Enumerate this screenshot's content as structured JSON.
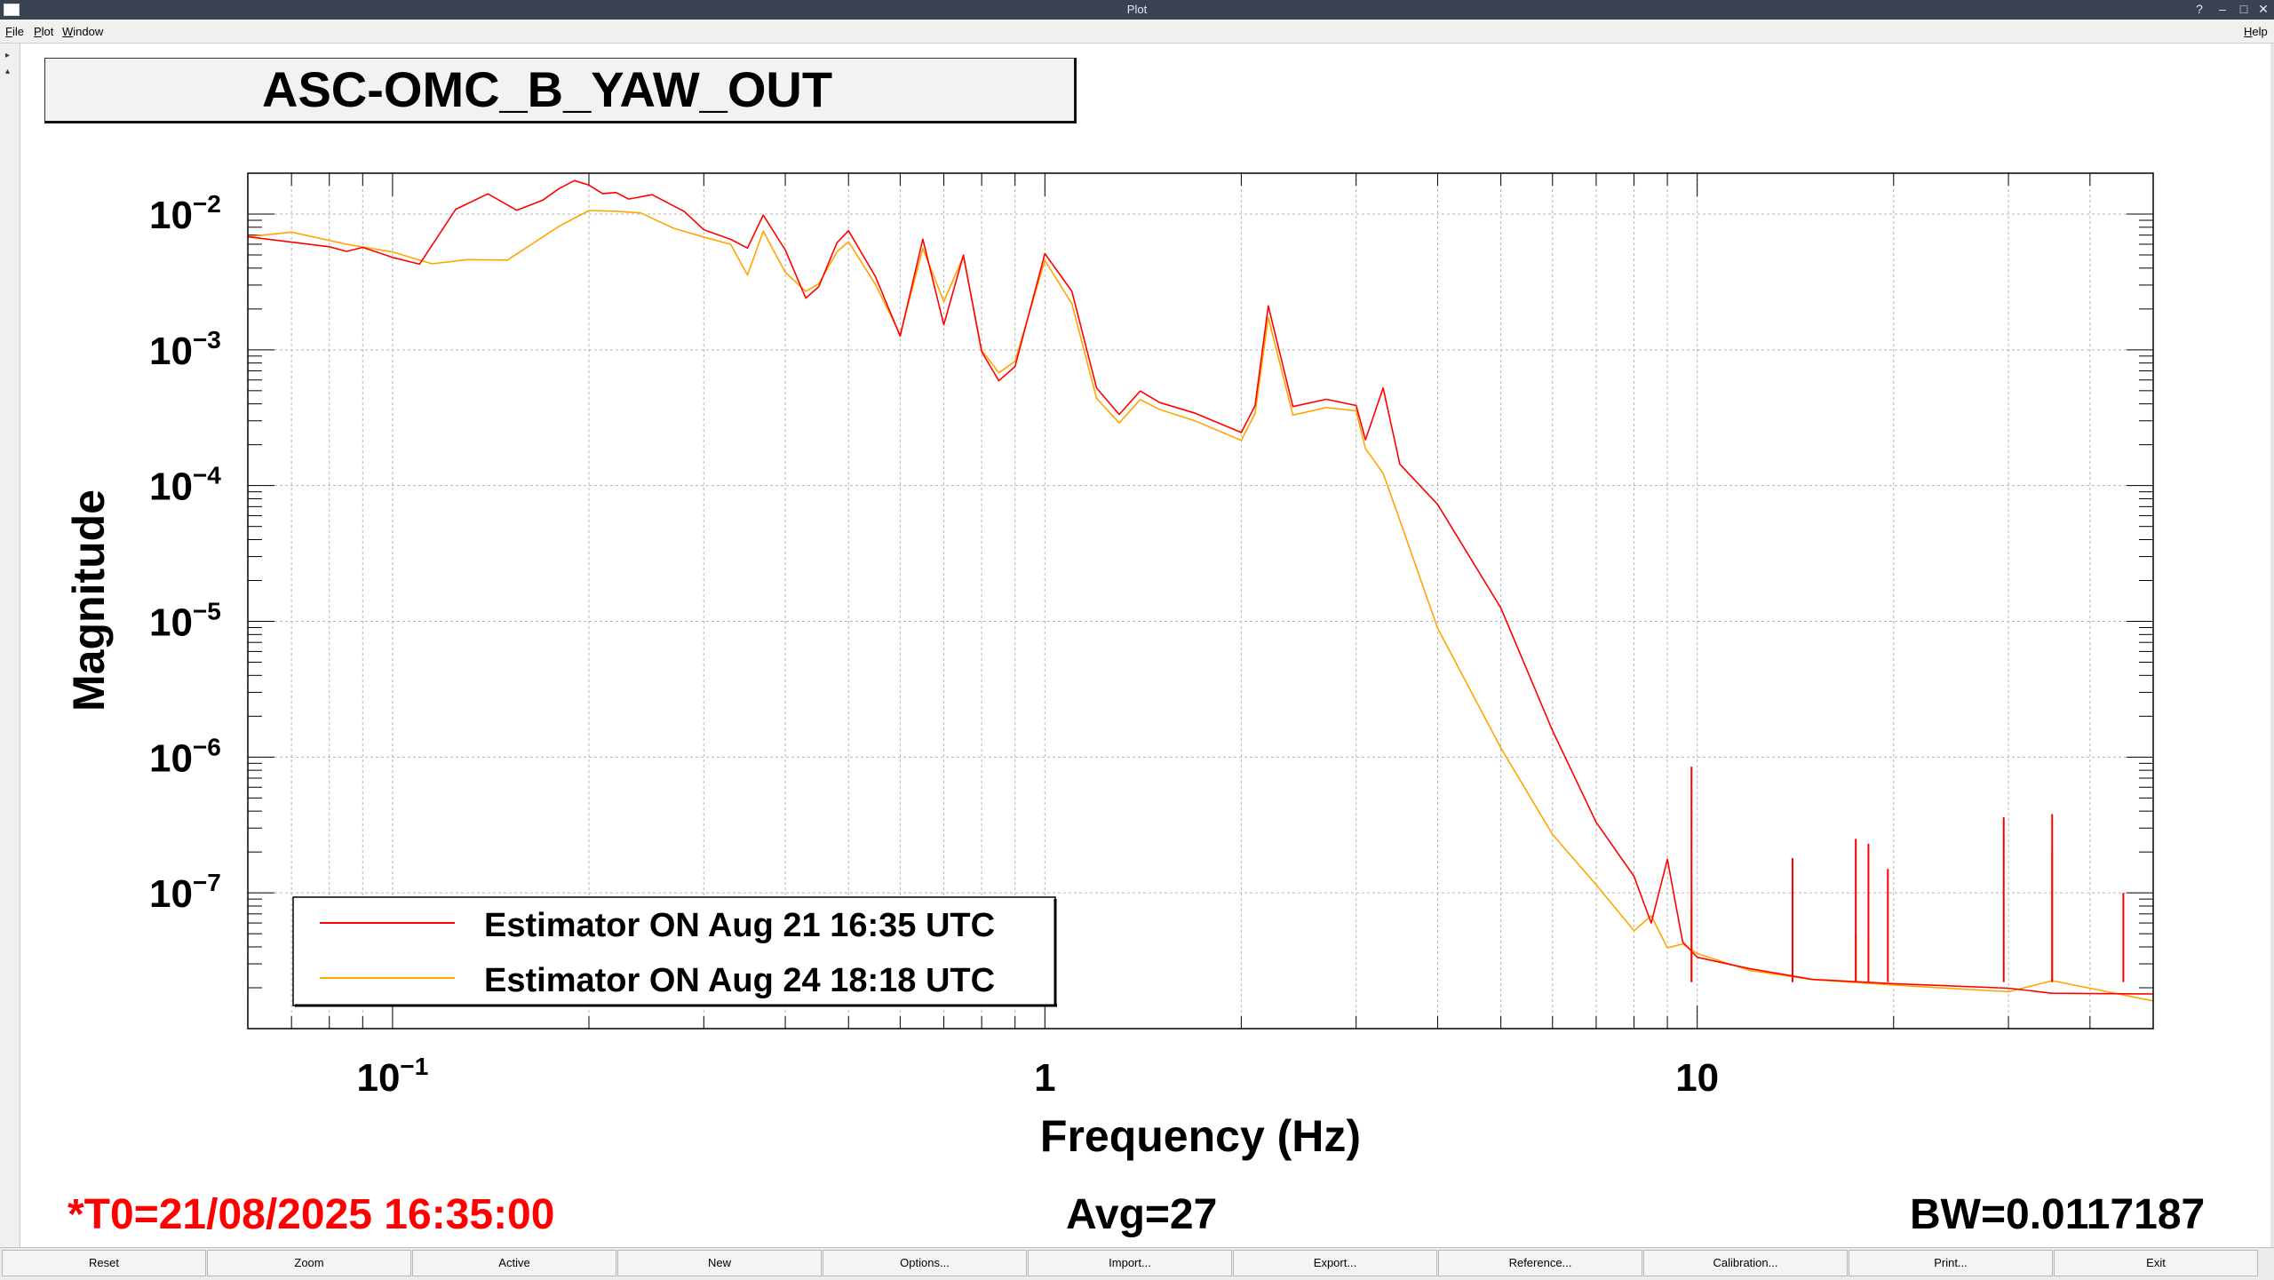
{
  "window": {
    "title": "Plot",
    "controls": [
      "?",
      "–",
      "□",
      "✕"
    ]
  },
  "menu": {
    "items": [
      "File",
      "Plot",
      "Window"
    ],
    "help": "Help"
  },
  "plot_title": "ASC-OMC_B_YAW_OUT",
  "footer": {
    "t0": "*T0=21/08/2025 16:35:00",
    "avg": "Avg=27",
    "bw": "BW=0.0117187"
  },
  "buttons": [
    "Reset",
    "Zoom",
    "Active",
    "New",
    "Options...",
    "Import...",
    "Export...",
    "Reference...",
    "Calibration...",
    "Print...",
    "Exit"
  ],
  "colors": {
    "series_aug21": "#ff0000",
    "series_aug24": "#ffa500",
    "t0_text": "#ff0000"
  },
  "chart_data": {
    "type": "line",
    "xlabel": "Frequency (Hz)",
    "ylabel": "Magnitude",
    "x_scale": "log",
    "y_scale": "log",
    "xlim": [
      0.06,
      50
    ],
    "ylim": [
      1e-08,
      0.02
    ],
    "x_ticks": [
      {
        "value": 0.1,
        "base": "10",
        "exp": "−1"
      },
      {
        "value": 1,
        "base": "1",
        "exp": ""
      },
      {
        "value": 10,
        "base": "10",
        "exp": ""
      }
    ],
    "y_ticks": [
      {
        "value": 0.01,
        "base": "10",
        "exp": "−2"
      },
      {
        "value": 0.001,
        "base": "10",
        "exp": "−3"
      },
      {
        "value": 0.0001,
        "base": "10",
        "exp": "−4"
      },
      {
        "value": 1e-05,
        "base": "10",
        "exp": "−5"
      },
      {
        "value": 1e-06,
        "base": "10",
        "exp": "−6"
      },
      {
        "value": 1e-07,
        "base": "10",
        "exp": "−7"
      }
    ],
    "grid": true,
    "legend": "bottom-left",
    "series": [
      {
        "name": "Estimator ON Aug 24 18:18 UTC",
        "color": "#ffa500",
        "x": [
          0.06,
          0.07,
          0.085,
          0.1,
          0.115,
          0.13,
          0.15,
          0.18,
          0.2,
          0.22,
          0.24,
          0.27,
          0.3,
          0.33,
          0.35,
          0.37,
          0.4,
          0.43,
          0.45,
          0.48,
          0.5,
          0.55,
          0.6,
          0.65,
          0.7,
          0.75,
          0.8,
          0.85,
          0.9,
          1.0,
          1.1,
          1.2,
          1.3,
          1.4,
          1.5,
          1.7,
          2.0,
          2.1,
          2.2,
          2.4,
          2.7,
          3.0,
          3.1,
          3.3,
          3.5,
          4.0,
          5.0,
          6.0,
          7.0,
          8.0,
          8.5,
          9.0,
          9.5,
          10,
          12,
          15,
          20,
          30,
          35,
          50
        ],
        "y": [
          0.0068,
          0.0075,
          0.0062,
          0.0055,
          0.0045,
          0.0048,
          0.0047,
          0.0082,
          0.0105,
          0.0102,
          0.0098,
          0.0075,
          0.0065,
          0.0058,
          0.0035,
          0.0075,
          0.0038,
          0.0028,
          0.0032,
          0.0055,
          0.0065,
          0.0031,
          0.0013,
          0.0055,
          0.0022,
          0.0047,
          0.00095,
          0.00065,
          0.0008,
          0.0045,
          0.0022,
          0.00045,
          0.0003,
          0.00045,
          0.00038,
          0.00031,
          0.00022,
          0.00034,
          0.0017,
          0.00032,
          0.00036,
          0.00034,
          0.00018,
          0.00012,
          5.5e-05,
          9e-06,
          1.2e-06,
          2.8e-07,
          1.2e-07,
          5.5e-08,
          7e-08,
          4e-08,
          4.2e-08,
          3.5e-08,
          2.6e-08,
          2.2e-08,
          2e-08,
          1.8e-08,
          2.2e-08,
          1.6e-08
        ]
      },
      {
        "name": "Estimator ON Aug 21 16:35 UTC",
        "color": "#ff0000",
        "x": [
          0.06,
          0.07,
          0.08,
          0.085,
          0.09,
          0.1,
          0.11,
          0.125,
          0.14,
          0.155,
          0.17,
          0.18,
          0.19,
          0.2,
          0.21,
          0.22,
          0.23,
          0.25,
          0.28,
          0.3,
          0.33,
          0.35,
          0.37,
          0.4,
          0.43,
          0.45,
          0.48,
          0.5,
          0.55,
          0.6,
          0.65,
          0.7,
          0.75,
          0.8,
          0.85,
          0.9,
          1.0,
          1.1,
          1.2,
          1.3,
          1.4,
          1.5,
          1.7,
          2.0,
          2.1,
          2.2,
          2.4,
          2.7,
          3.0,
          3.1,
          3.3,
          3.5,
          4.0,
          5.0,
          6.0,
          7.0,
          8.0,
          8.5,
          9.0,
          9.5,
          10,
          12,
          15,
          20,
          30,
          35,
          50
        ],
        "y": [
          0.0068,
          0.0065,
          0.006,
          0.0055,
          0.0058,
          0.0048,
          0.0042,
          0.0105,
          0.0135,
          0.0102,
          0.0122,
          0.015,
          0.0175,
          0.0165,
          0.0145,
          0.015,
          0.0135,
          0.0145,
          0.0108,
          0.0078,
          0.0065,
          0.0055,
          0.0095,
          0.0052,
          0.0023,
          0.0028,
          0.006,
          0.0075,
          0.0035,
          0.0013,
          0.0068,
          0.0016,
          0.0052,
          0.001,
          0.0006,
          0.00075,
          0.005,
          0.0026,
          0.0005,
          0.00032,
          0.00048,
          0.0004,
          0.00034,
          0.00025,
          0.0004,
          0.0022,
          0.0004,
          0.00045,
          0.0004,
          0.00022,
          0.00052,
          0.00014,
          7e-05,
          1.2e-05,
          1.5e-06,
          3.2e-07,
          1.3e-07,
          6e-08,
          1.8e-07,
          4.5e-08,
          3.5e-08,
          2.9e-08,
          2.4e-08,
          2.2e-08,
          2e-08,
          1.8e-08,
          1.8e-08
        ]
      }
    ],
    "peaks": [
      {
        "series": 0,
        "x": 9.8,
        "y": 8e-08
      },
      {
        "series": 0,
        "x": 14.0,
        "y": 6e-08
      },
      {
        "series": 0,
        "x": 17.5,
        "y": 5e-08
      },
      {
        "series": 0,
        "x": 18.3,
        "y": 5e-08
      },
      {
        "series": 0,
        "x": 35.0,
        "y": 2e-07
      },
      {
        "series": 1,
        "x": 9.8,
        "y": 8.5e-07
      },
      {
        "series": 1,
        "x": 14.0,
        "y": 1.8e-07
      },
      {
        "series": 1,
        "x": 17.5,
        "y": 2.5e-07
      },
      {
        "series": 1,
        "x": 18.3,
        "y": 2.3e-07
      },
      {
        "series": 1,
        "x": 19.6,
        "y": 1.5e-07
      },
      {
        "series": 1,
        "x": 29.5,
        "y": 3.6e-07
      },
      {
        "series": 1,
        "x": 35.0,
        "y": 3.8e-07
      },
      {
        "series": 1,
        "x": 45.0,
        "y": 1e-07
      }
    ]
  }
}
